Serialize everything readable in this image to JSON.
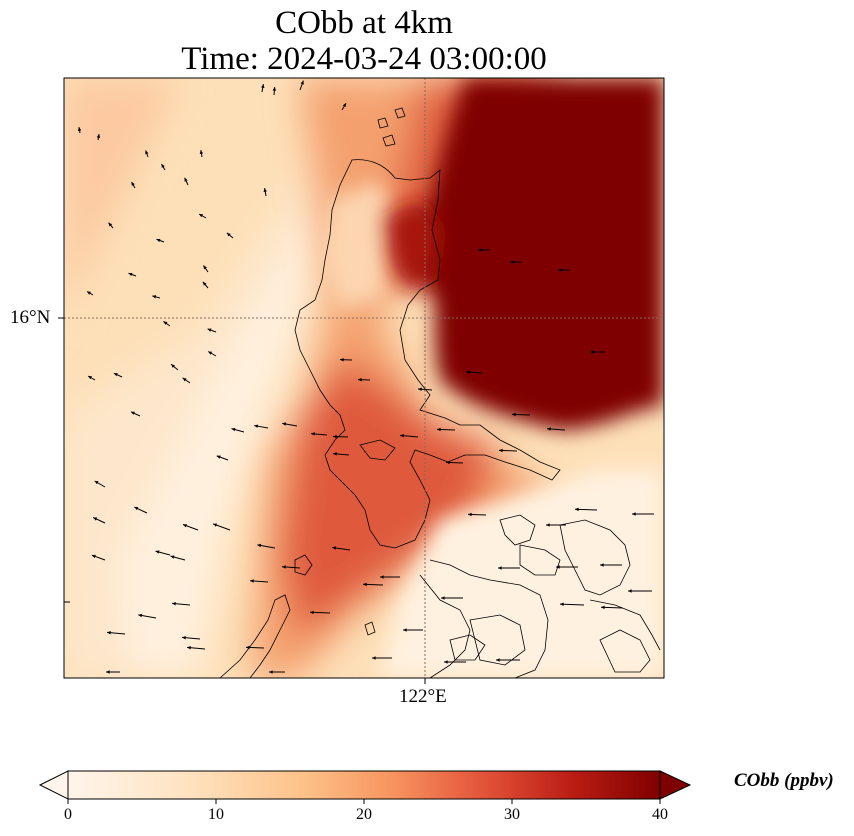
{
  "title": {
    "line1": "CObb at 4km",
    "line2": "Time: 2024-03-24 03:00:00"
  },
  "axes": {
    "lat_label": "16°N",
    "lon_label": "122°E"
  },
  "colorbar": {
    "label": "CObb (ppbv)",
    "min": 0,
    "max": 40,
    "ticks": [
      "0",
      "10",
      "20",
      "30",
      "40"
    ],
    "colors": [
      "#fff5eb",
      "#fdd9a8",
      "#fca16c",
      "#e85a3c",
      "#b71c1c",
      "#7f0000"
    ]
  },
  "map_style": {
    "field_colors": {
      "low": "#fff1e0",
      "mid_low": "#fddcb0",
      "mid": "#f9b88a",
      "mid_high": "#e4603f",
      "high": "#c2362a",
      "max": "#7f0000"
    },
    "coastline_color": "#000000",
    "gridline_color": "#8a6a55",
    "arrow_color": "#000000"
  }
}
